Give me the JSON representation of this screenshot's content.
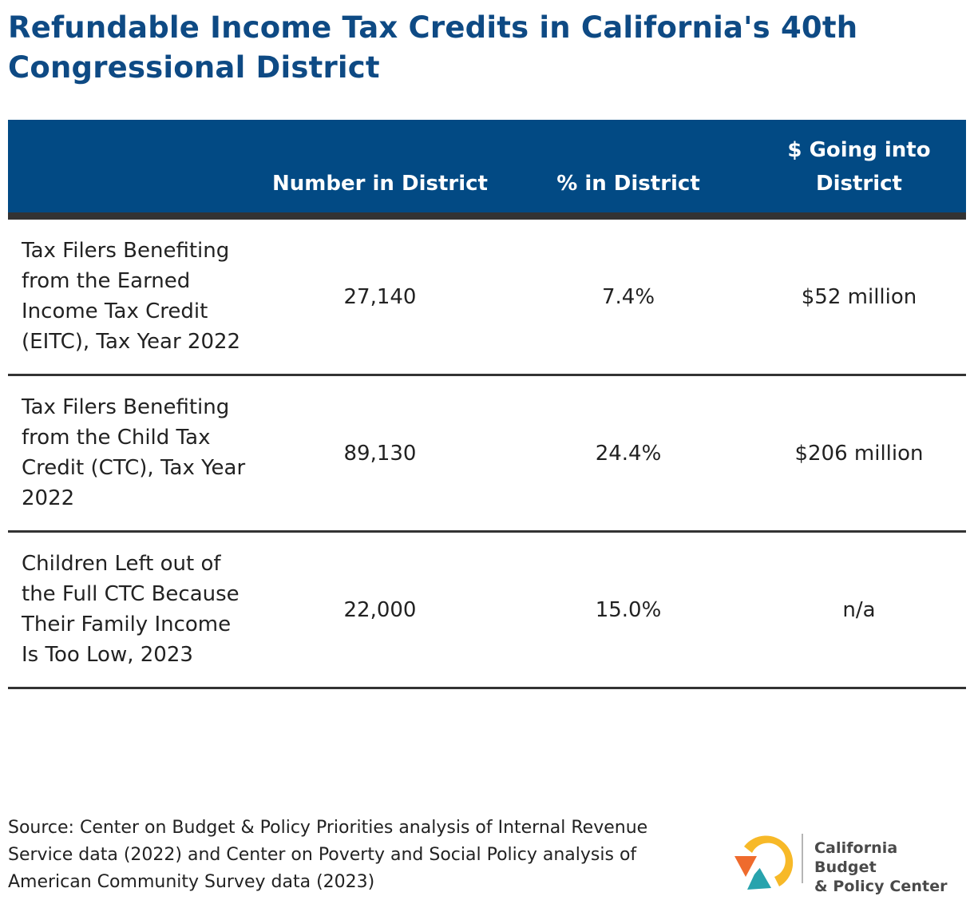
{
  "title": "Refundable Income Tax Credits in California's 40th Congressional District",
  "table": {
    "headers": [
      "",
      "Number in District",
      "% in District",
      "$ Going into District"
    ],
    "rows": [
      {
        "label": "Tax Filers Benefiting from the Earned Income Tax Credit (EITC), Tax Year 2022",
        "number": "27,140",
        "percent": "7.4%",
        "dollars": "$52 million"
      },
      {
        "label": "Tax Filers Benefiting from the Child Tax Credit (CTC), Tax Year 2022",
        "number": "89,130",
        "percent": "24.4%",
        "dollars": "$206 million"
      },
      {
        "label": "Children Left out of the Full CTC Because Their Family Income Is Too Low, 2023",
        "number": "22,000",
        "percent": "15.0%",
        "dollars": "n/a"
      }
    ]
  },
  "source": "Source: Center on Budget & Policy Priorities analysis of Internal Revenue Service data (2022) and Center on Poverty and Social Policy analysis of American Community Survey data (2023)",
  "logo": {
    "line1": "California Budget",
    "line2": "& Policy Center",
    "icon": "cbpc-logo-icon"
  },
  "colors": {
    "title": "#0e4a84",
    "header_bg": "#024a84",
    "rule": "#333333",
    "logo_yellow": "#f7b928",
    "logo_orange": "#ef6b2d",
    "logo_teal": "#27a3ad"
  }
}
